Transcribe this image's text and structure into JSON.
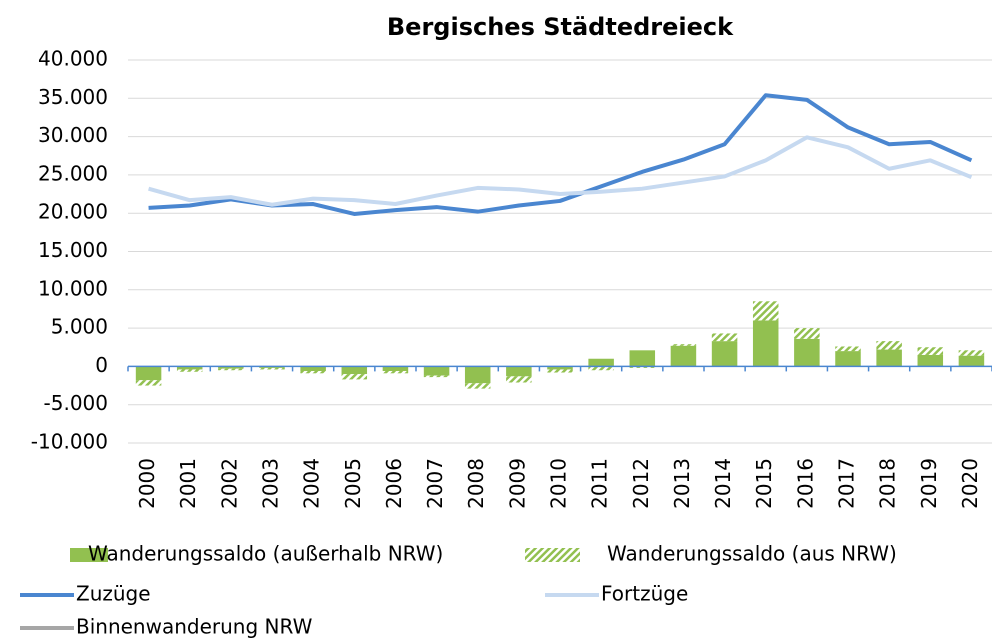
{
  "chart_data": {
    "type": "combo",
    "title": "Bergisches Städtedreieck",
    "categories": [
      "2000",
      "2001",
      "2002",
      "2003",
      "2004",
      "2005",
      "2006",
      "2007",
      "2008",
      "2009",
      "2010",
      "2011",
      "2012",
      "2013",
      "2014",
      "2015",
      "2016",
      "2017",
      "2018",
      "2019",
      "2020"
    ],
    "ylim": [
      -10000,
      40000
    ],
    "yticks": [
      {
        "value": -10000,
        "label": "-10.000"
      },
      {
        "value": -5000,
        "label": "-5.000"
      },
      0,
      {
        "value": 5000,
        "label": "5.000"
      },
      {
        "value": 10000,
        "label": "10.000"
      },
      {
        "value": 15000,
        "label": "15.000"
      },
      {
        "value": 20000,
        "label": "20.000"
      },
      {
        "value": 25000,
        "label": "25.000"
      },
      {
        "value": 30000,
        "label": "30.000"
      },
      {
        "value": 35000,
        "label": "35.000"
      },
      {
        "value": 40000,
        "label": "40.000"
      }
    ],
    "grid": true,
    "series": [
      {
        "name": "Wanderungssaldo (außerhalb NRW)",
        "type": "bar",
        "color": "#92c050",
        "values": [
          -1800,
          -400,
          -300,
          -200,
          -600,
          -1000,
          -600,
          -1200,
          -2200,
          -1300,
          -400,
          1000,
          2100,
          2700,
          3300,
          6000,
          3600,
          2000,
          2200,
          1500,
          1400
        ]
      },
      {
        "name": "Wanderungssaldo (aus NRW)",
        "type": "bar",
        "pattern": "hatched",
        "color": "#92c050",
        "values": [
          -700,
          -300,
          -200,
          -200,
          -300,
          -700,
          -300,
          -200,
          -700,
          -800,
          -400,
          -500,
          -200,
          200,
          1000,
          2500,
          1400,
          600,
          1100,
          1000,
          700
        ]
      },
      {
        "name": "Zuzüge",
        "type": "line",
        "color": "#4a86d0",
        "values": [
          20700,
          21000,
          21800,
          21000,
          21200,
          19900,
          20400,
          20800,
          20200,
          21000,
          21600,
          23500,
          25400,
          27000,
          29000,
          35400,
          34800,
          31200,
          29000,
          29300,
          26900
        ]
      },
      {
        "name": "Fortzüge",
        "type": "line",
        "color": "#c6d9f0",
        "values": [
          23200,
          21700,
          22100,
          21100,
          21900,
          21700,
          21200,
          22300,
          23300,
          23100,
          22500,
          22800,
          23200,
          24000,
          24800,
          26900,
          29900,
          28600,
          25800,
          26900,
          24700
        ]
      },
      {
        "name": "Binnenwanderung NRW",
        "type": "line",
        "color": "#a6a6a6",
        "values": [
          null,
          null,
          null,
          null,
          null,
          null,
          null,
          null,
          null,
          null,
          null,
          null,
          null,
          null,
          null,
          null,
          null,
          null,
          null,
          null,
          null
        ]
      }
    ]
  }
}
